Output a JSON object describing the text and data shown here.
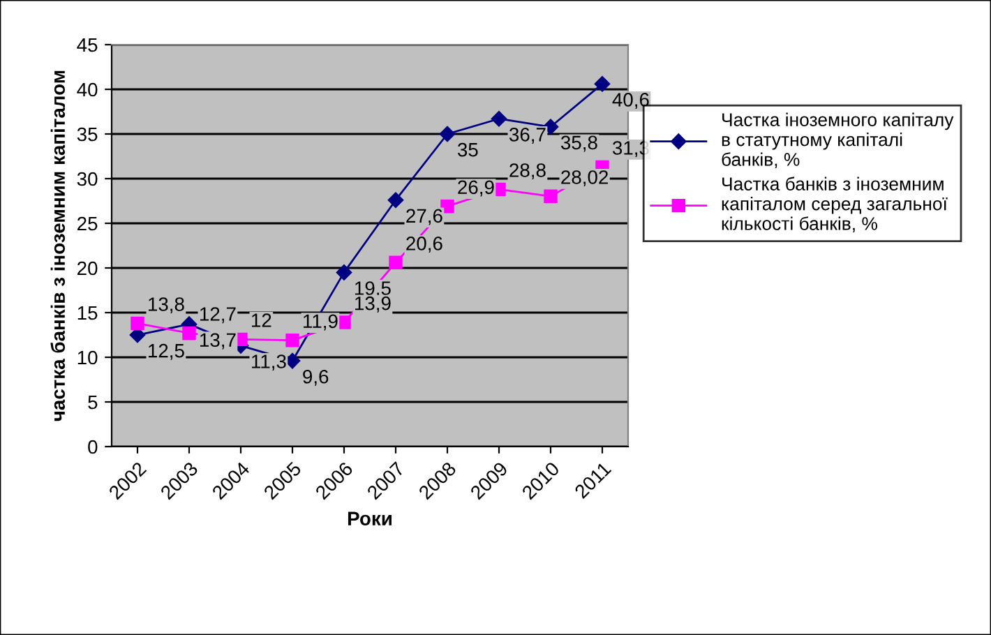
{
  "chart_data": {
    "type": "line",
    "xlabel": "Роки",
    "ylabel": "частка банків з іноземним капіталом",
    "categories": [
      "2002",
      "2003",
      "2004",
      "2005",
      "2006",
      "2007",
      "2008",
      "2009",
      "2010",
      "2011"
    ],
    "series": [
      {
        "name": "Частка іноземного капіталу\nв статутному капіталі\nбанків, %",
        "color": "#000080",
        "marker": "diamond",
        "values": [
          12.5,
          13.7,
          11.3,
          9.6,
          19.5,
          27.6,
          35,
          36.7,
          35.8,
          40.6
        ],
        "value_labels": [
          "12,5",
          "13,7",
          "11,3",
          "9,6",
          "19,5",
          "27,6",
          "35",
          "36,7",
          "35,8",
          "40,6"
        ]
      },
      {
        "name": "Частка банків з іноземним\nкапіталом серед загальної\nкількості банків, %",
        "color": "#ff00ff",
        "marker": "square",
        "values": [
          13.8,
          12.7,
          12,
          11.9,
          13.9,
          20.6,
          26.9,
          28.8,
          28.02,
          31.3
        ],
        "value_labels": [
          "13,8",
          "12,7",
          "12",
          "11,9",
          "13,9",
          "20,6",
          "26,9",
          "28,8",
          "28,02",
          "31,3"
        ]
      }
    ],
    "ylim": [
      0,
      45
    ],
    "yticks": [
      0,
      5,
      10,
      15,
      20,
      25,
      30,
      35,
      40,
      45
    ],
    "grid": "y",
    "legend": "right"
  }
}
